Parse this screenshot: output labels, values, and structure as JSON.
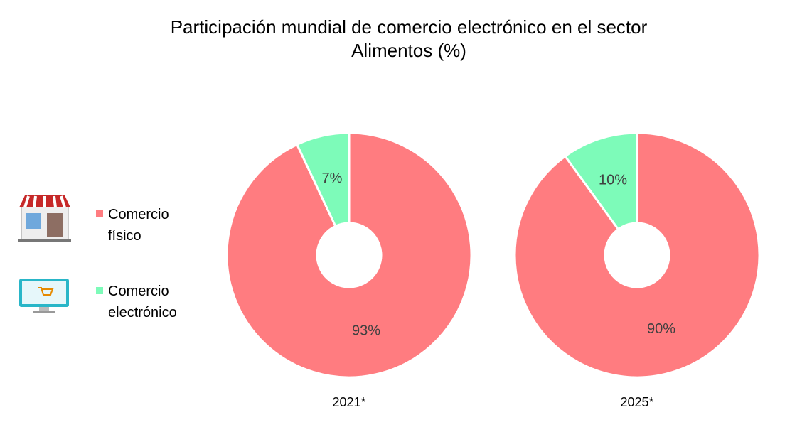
{
  "chart_data": {
    "type": "pie",
    "title": "Participación mundial de comercio electrónico en el sector Alimentos (%)",
    "categories": [
      "Comercio físico",
      "Comercio electrónico"
    ],
    "colors": [
      "#ff7c80",
      "#7dfbb9"
    ],
    "donut": true,
    "series": [
      {
        "name": "2021*",
        "values": [
          93,
          7
        ],
        "value_labels": [
          "93%",
          "7%"
        ]
      },
      {
        "name": "2025*",
        "values": [
          90,
          10
        ],
        "value_labels": [
          "90%",
          "10%"
        ]
      }
    ]
  }
}
